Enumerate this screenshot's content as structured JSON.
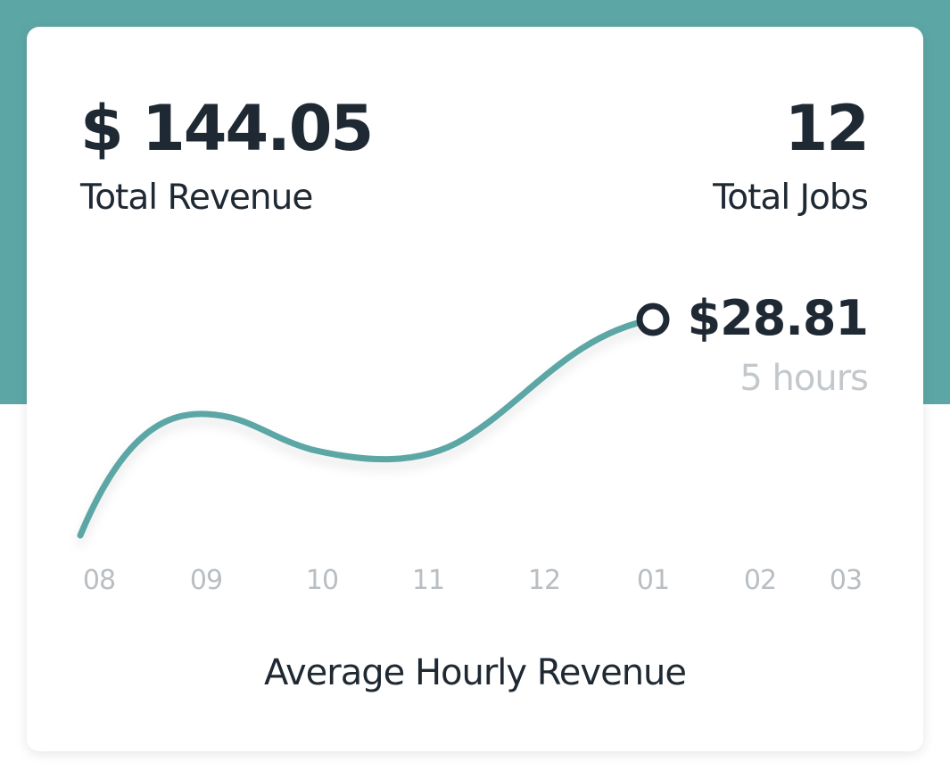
{
  "colors": {
    "accent": "#5ca7a6",
    "text": "#1f2933",
    "muted": "#c3c8cc",
    "tick": "#b9bec3"
  },
  "stats": {
    "revenue": {
      "value": "$ 144.05",
      "label": "Total Revenue"
    },
    "jobs": {
      "value": "12",
      "label": "Total Jobs"
    }
  },
  "peak": {
    "value": "$28.81",
    "sublabel": "5 hours"
  },
  "chart_data": {
    "type": "line",
    "title": "Average Hourly Revenue",
    "xlabel": "",
    "ylabel": "",
    "categories": [
      "08",
      "09",
      "10",
      "11",
      "12",
      "01",
      "02",
      "03"
    ],
    "grid": false,
    "legend": "none"
  }
}
